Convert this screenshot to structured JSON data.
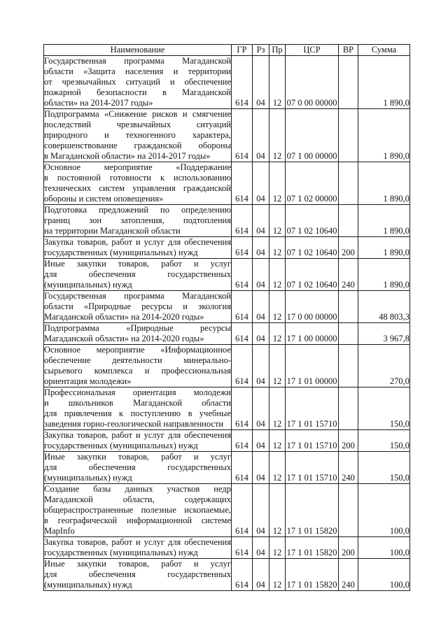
{
  "table": {
    "headers": [
      "Наименование",
      "ГР",
      "Рз",
      "Пр",
      "ЦСР",
      "ВР",
      "Сумма"
    ],
    "rows": [
      {
        "name_lines": [
          "Государственная программа Магаданской",
          "области «Защита населения и территории",
          "от чрезвычайных ситуаций и обеспечение",
          "пожарной безопасности в Магаданской",
          "области» на 2014-2017 годы»"
        ],
        "gr": "614",
        "rz": "04",
        "pr": "12",
        "csr": "07 0 00 00000",
        "vr": "",
        "sum": "1 890,0"
      },
      {
        "name_lines": [
          "Подпрограмма «Снижение рисков и смягчение",
          "последствий чрезвычайных ситуаций",
          "природного и техногенного характера,",
          "совершенствование гражданской обороны",
          "в Магаданской области» на 2014-2017 годы»"
        ],
        "gr": "614",
        "rz": "04",
        "pr": "12",
        "csr": "07 1 00 00000",
        "vr": "",
        "sum": "1 890,0"
      },
      {
        "name_lines": [
          "Основное мероприятие «Поддержание",
          "в постоянной готовности к использованию",
          "технических систем управления гражданской",
          "обороны и систем оповещения»"
        ],
        "gr": "614",
        "rz": "04",
        "pr": "12",
        "csr": "07 1 02 00000",
        "vr": "",
        "sum": "1 890,0"
      },
      {
        "name_lines": [
          "Подготовка предложений по определению",
          "границ зон затопления, подтопления",
          "на территории Магаданской области"
        ],
        "gr": "614",
        "rz": "04",
        "pr": "12",
        "csr": "07 1 02 10640",
        "vr": "",
        "sum": "1 890,0"
      },
      {
        "name_lines": [
          "Закупка товаров, работ и услуг для обеспечения",
          "государственных (муниципальных) нужд"
        ],
        "gr": "614",
        "rz": "04",
        "pr": "12",
        "csr": "07 1 02 10640",
        "vr": "200",
        "sum": "1 890,0"
      },
      {
        "name_lines": [
          "Иные закупки товаров, работ и услуг",
          "для обеспечения государственных",
          "(муниципальных) нужд"
        ],
        "gr": "614",
        "rz": "04",
        "pr": "12",
        "csr": "07 1 02 10640",
        "vr": "240",
        "sum": "1 890,0"
      },
      {
        "name_lines": [
          "Государственная программа Магаданской",
          "области «Природные ресурсы и экология",
          "Магаданской области» на 2014-2020 годы»"
        ],
        "gr": "614",
        "rz": "04",
        "pr": "12",
        "csr": "17 0 00 00000",
        "vr": "",
        "sum": "48 803,3"
      },
      {
        "name_lines": [
          "Подпрограмма «Природные ресурсы",
          "Магаданской области» на 2014-2020 годы»"
        ],
        "gr": "614",
        "rz": "04",
        "pr": "12",
        "csr": "17 1 00 00000",
        "vr": "",
        "sum": "3 967,8"
      },
      {
        "name_lines": [
          "Основное мероприятие «Информационное",
          "обеспечение деятельности минерально-",
          "сырьевого комплекса и профессиональная",
          "ориентация молодежи»"
        ],
        "gr": "614",
        "rz": "04",
        "pr": "12",
        "csr": "17 1 01 00000",
        "vr": "",
        "sum": "270,0"
      },
      {
        "name_lines": [
          "Профессиональная ориентация молодежи",
          "и школьников Магаданской области",
          "для привлечения к поступлению в учебные",
          "заведения горно-геологической направленности"
        ],
        "gr": "614",
        "rz": "04",
        "pr": "12",
        "csr": "17 1 01 15710",
        "vr": "",
        "sum": "150,0"
      },
      {
        "name_lines": [
          "Закупка товаров, работ и услуг для обеспечения",
          "государственных (муниципальных) нужд"
        ],
        "gr": "614",
        "rz": "04",
        "pr": "12",
        "csr": "17 1 01 15710",
        "vr": "200",
        "sum": "150,0"
      },
      {
        "name_lines": [
          "Иные закупки товаров, работ и услуг",
          "для обеспечения государственных",
          "(муниципальных) нужд"
        ],
        "gr": "614",
        "rz": "04",
        "pr": "12",
        "csr": "17 1 01 15710",
        "vr": "240",
        "sum": "150,0"
      },
      {
        "name_lines": [
          "Создание базы данных участков недр",
          "Магаданской области, содержащих",
          "общераспространенные полезные ископаемые,",
          "в географической информационной системе",
          "MapInfo"
        ],
        "gr": "614",
        "rz": "04",
        "pr": "12",
        "csr": "17 1 01 15820",
        "vr": "",
        "sum": "100,0"
      },
      {
        "name_lines": [
          "Закупка товаров, работ и услуг для обеспечения",
          "государственных (муниципальных) нужд"
        ],
        "gr": "614",
        "rz": "04",
        "pr": "12",
        "csr": "17 1 01 15820",
        "vr": "200",
        "sum": "100,0"
      },
      {
        "name_lines": [
          "Иные закупки товаров, работ и услуг",
          "для обеспечения государственных",
          "(муниципальных) нужд"
        ],
        "gr": "614",
        "rz": "04",
        "pr": "12",
        "csr": "17 1 01 15820",
        "vr": "240",
        "sum": "100,0"
      }
    ]
  }
}
